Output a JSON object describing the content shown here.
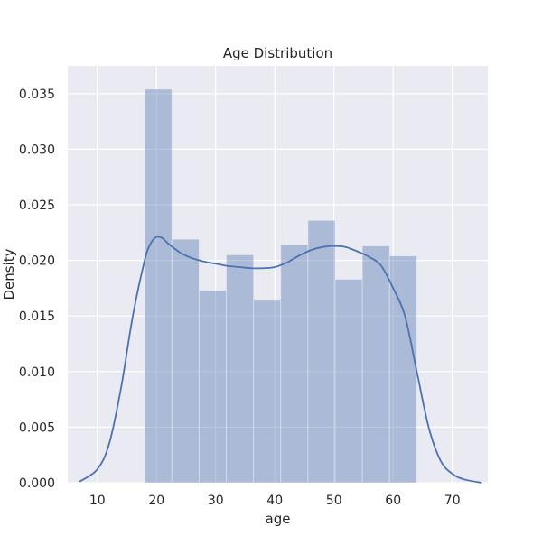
{
  "chart_data": {
    "type": "bar",
    "title": "Age Distribution",
    "xlabel": "age",
    "ylabel": "Density",
    "xlim": [
      5,
      76
    ],
    "ylim": [
      0,
      0.0375
    ],
    "xticks": [
      10,
      20,
      30,
      40,
      50,
      60,
      70
    ],
    "yticks": [
      0.0,
      0.005,
      0.01,
      0.015,
      0.02,
      0.025,
      0.03,
      0.035
    ],
    "ytick_labels": [
      "0.000",
      "0.005",
      "0.010",
      "0.015",
      "0.020",
      "0.025",
      "0.030",
      "0.035"
    ],
    "grid": true,
    "histogram": {
      "bin_edges": [
        18,
        22.6,
        27.2,
        31.8,
        36.4,
        41,
        45.6,
        50.2,
        54.8,
        59.4,
        64
      ],
      "densities": [
        0.0354,
        0.0219,
        0.0173,
        0.0205,
        0.0164,
        0.0214,
        0.0236,
        0.0183,
        0.0213,
        0.0204
      ]
    },
    "kde": {
      "x": [
        7,
        10,
        12,
        14,
        16,
        18,
        19,
        20,
        21,
        22,
        24,
        26,
        28,
        30,
        32,
        34,
        36,
        38,
        40,
        42,
        44,
        46,
        48,
        50,
        52,
        54,
        56,
        58,
        60,
        62,
        64,
        66,
        68,
        70,
        72,
        75
      ],
      "y": [
        0.0001,
        0.0012,
        0.0035,
        0.0085,
        0.015,
        0.02,
        0.0215,
        0.0221,
        0.022,
        0.0215,
        0.0207,
        0.0202,
        0.0199,
        0.0197,
        0.0195,
        0.0194,
        0.0193,
        0.0193,
        0.0194,
        0.0198,
        0.0204,
        0.0209,
        0.0212,
        0.0213,
        0.0212,
        0.0208,
        0.0203,
        0.0195,
        0.0175,
        0.015,
        0.01,
        0.005,
        0.002,
        0.0008,
        0.0003,
        0.0
      ]
    },
    "colors": {
      "background": "#eaeaf2",
      "grid": "#ffffff",
      "bar_fill": "#4c72b0",
      "kde_line": "#4c72b0"
    }
  }
}
